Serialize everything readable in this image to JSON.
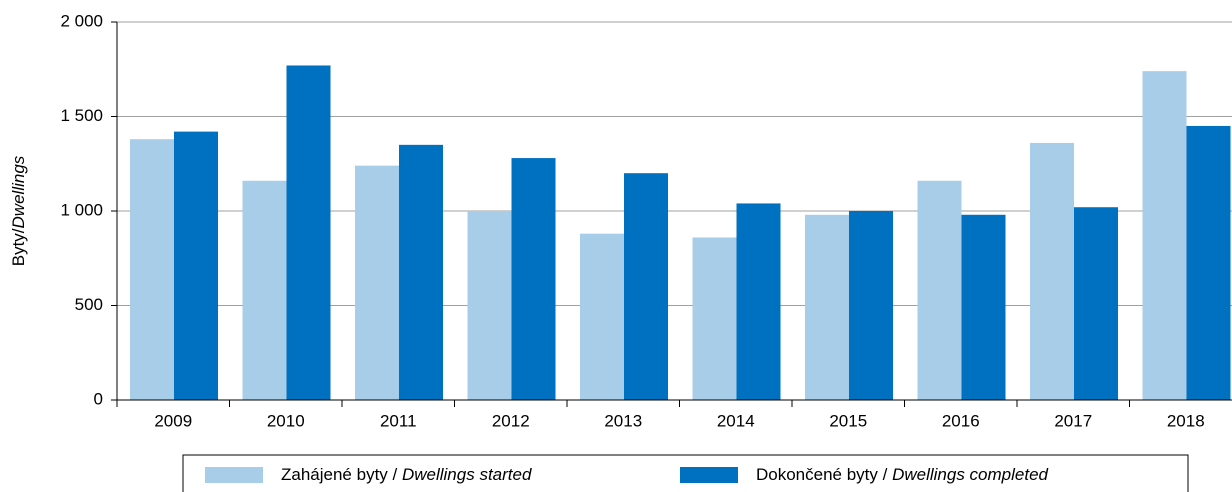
{
  "chart_data": {
    "type": "bar",
    "ylabel": [
      "Byty/",
      "Dwellings"
    ],
    "categories": [
      "2009",
      "2010",
      "2011",
      "2012",
      "2013",
      "2014",
      "2015",
      "2016",
      "2017",
      "2018"
    ],
    "series": [
      {
        "name": [
          "Zahájené byty / ",
          "Dwellings started"
        ],
        "color": "#a8cde8",
        "values": [
          1380,
          1160,
          1240,
          1000,
          880,
          860,
          980,
          1160,
          1360,
          1740
        ]
      },
      {
        "name": [
          "Dokončené byty / ",
          "Dwellings completed"
        ],
        "color": "#0070c0",
        "values": [
          1420,
          1770,
          1350,
          1280,
          1200,
          1040,
          1000,
          980,
          1020,
          1450
        ]
      }
    ],
    "ylim": [
      0,
      2000
    ],
    "yticks": [
      0,
      500,
      {
        "value": 1000,
        "label": "1 000"
      },
      {
        "value": 1500,
        "label": "1 500"
      },
      {
        "value": 2000,
        "label": "2 000"
      }
    ],
    "grid": true
  }
}
